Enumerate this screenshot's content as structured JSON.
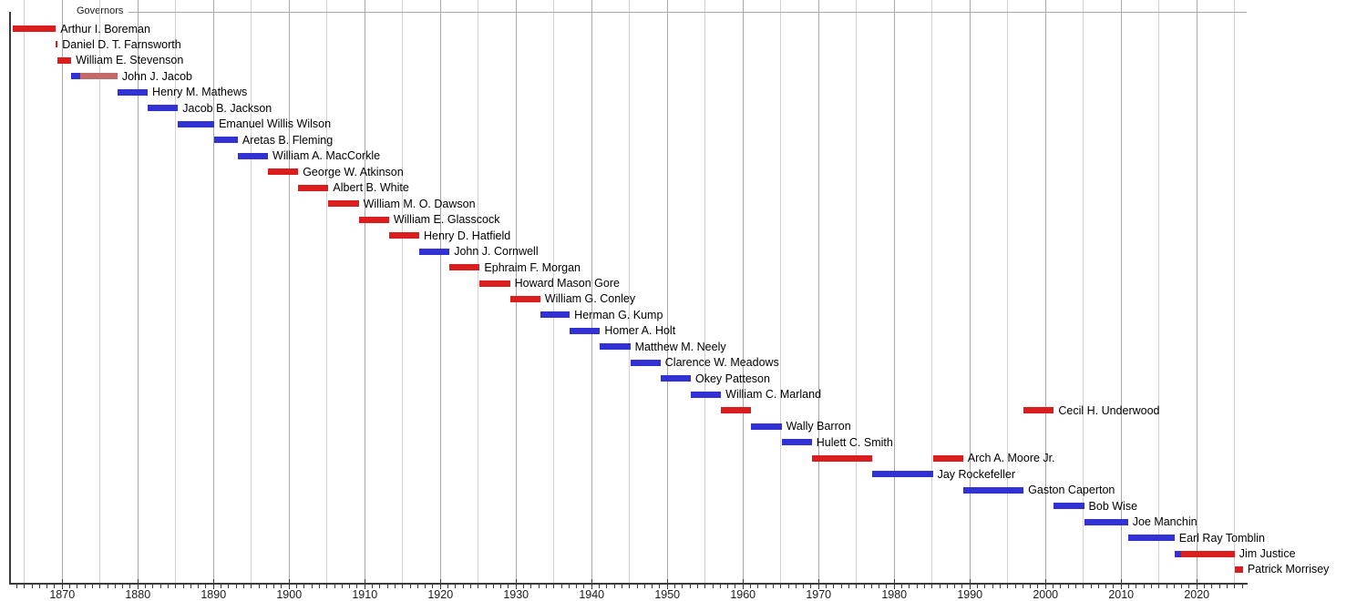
{
  "chart_data": {
    "type": "gantt",
    "title": "Governors",
    "subject": "Timeline of governors shown as colored term bars by party",
    "legend_position": "none",
    "grid": true,
    "x_axis": {
      "start": 1863.1,
      "end": 2026.6,
      "major_tick_interval": 10,
      "minor_tick_interval": 1,
      "gridline_interval": 5,
      "tick_labels": [
        "1870",
        "1880",
        "1890",
        "1900",
        "1910",
        "1920",
        "1930",
        "1940",
        "1950",
        "1960",
        "1970",
        "1980",
        "1990",
        "2000",
        "2010",
        "2020"
      ]
    },
    "party_colors": {
      "republican": "#dc1d1d",
      "democratic": "#3232d4",
      "independent": "#c46a6a"
    },
    "rows": [
      {
        "label": "Arthur I. Boreman",
        "terms": [
          {
            "start": 1863.5,
            "end": 1869.16,
            "party": "republican"
          }
        ]
      },
      {
        "label": "Daniel D. T. Farnsworth",
        "terms": [
          {
            "start": 1869.16,
            "end": 1869.4,
            "party": "republican"
          }
        ]
      },
      {
        "label": "William E. Stevenson",
        "terms": [
          {
            "start": 1869.4,
            "end": 1871.2,
            "party": "republican"
          }
        ]
      },
      {
        "label": "John J. Jacob",
        "terms": [
          {
            "start": 1871.2,
            "end": 1872.4,
            "party": "democratic"
          },
          {
            "start": 1872.4,
            "end": 1877.3,
            "party": "independent"
          }
        ]
      },
      {
        "label": "Henry M. Mathews",
        "terms": [
          {
            "start": 1877.3,
            "end": 1881.3,
            "party": "democratic"
          }
        ]
      },
      {
        "label": "Jacob B. Jackson",
        "terms": [
          {
            "start": 1881.3,
            "end": 1885.3,
            "party": "democratic"
          }
        ]
      },
      {
        "label": "Emanuel Willis Wilson",
        "terms": [
          {
            "start": 1885.3,
            "end": 1890.1,
            "party": "democratic"
          }
        ]
      },
      {
        "label": "Aretas B. Fleming",
        "terms": [
          {
            "start": 1890.1,
            "end": 1893.2,
            "party": "democratic"
          }
        ]
      },
      {
        "label": "William A. MacCorkle",
        "terms": [
          {
            "start": 1893.2,
            "end": 1897.2,
            "party": "democratic"
          }
        ]
      },
      {
        "label": "George W. Atkinson",
        "terms": [
          {
            "start": 1897.2,
            "end": 1901.2,
            "party": "republican"
          }
        ]
      },
      {
        "label": "Albert B. White",
        "terms": [
          {
            "start": 1901.2,
            "end": 1905.2,
            "party": "republican"
          }
        ]
      },
      {
        "label": "William M. O. Dawson",
        "terms": [
          {
            "start": 1905.2,
            "end": 1909.2,
            "party": "republican"
          }
        ]
      },
      {
        "label": "William E. Glasscock",
        "terms": [
          {
            "start": 1909.2,
            "end": 1913.2,
            "party": "republican"
          }
        ]
      },
      {
        "label": "Henry D. Hatfield",
        "terms": [
          {
            "start": 1913.2,
            "end": 1917.2,
            "party": "republican"
          }
        ]
      },
      {
        "label": "John J. Cornwell",
        "terms": [
          {
            "start": 1917.2,
            "end": 1921.2,
            "party": "democratic"
          }
        ]
      },
      {
        "label": "Ephraim F. Morgan",
        "terms": [
          {
            "start": 1921.2,
            "end": 1925.2,
            "party": "republican"
          }
        ]
      },
      {
        "label": "Howard Mason Gore",
        "terms": [
          {
            "start": 1925.2,
            "end": 1929.2,
            "party": "republican"
          }
        ]
      },
      {
        "label": "William G. Conley",
        "terms": [
          {
            "start": 1929.2,
            "end": 1933.2,
            "party": "republican"
          }
        ]
      },
      {
        "label": "Herman G. Kump",
        "terms": [
          {
            "start": 1933.2,
            "end": 1937.1,
            "party": "democratic"
          }
        ]
      },
      {
        "label": "Homer A. Holt",
        "terms": [
          {
            "start": 1937.1,
            "end": 1941.1,
            "party": "democratic"
          }
        ]
      },
      {
        "label": "Matthew M. Neely",
        "terms": [
          {
            "start": 1941.1,
            "end": 1945.1,
            "party": "democratic"
          }
        ]
      },
      {
        "label": "Clarence W. Meadows",
        "terms": [
          {
            "start": 1945.1,
            "end": 1949.1,
            "party": "democratic"
          }
        ]
      },
      {
        "label": "Okey Patteson",
        "terms": [
          {
            "start": 1949.1,
            "end": 1953.1,
            "party": "democratic"
          }
        ]
      },
      {
        "label": "William C. Marland",
        "terms": [
          {
            "start": 1953.1,
            "end": 1957.1,
            "party": "democratic"
          }
        ]
      },
      {
        "label": "Cecil H. Underwood",
        "terms": [
          {
            "start": 1957.1,
            "end": 1961.1,
            "party": "republican"
          },
          {
            "start": 1997.1,
            "end": 2001.1,
            "party": "republican"
          }
        ]
      },
      {
        "label": "Wally Barron",
        "terms": [
          {
            "start": 1961.1,
            "end": 1965.1,
            "party": "democratic"
          }
        ]
      },
      {
        "label": "Hulett C. Smith",
        "terms": [
          {
            "start": 1965.1,
            "end": 1969.1,
            "party": "democratic"
          }
        ]
      },
      {
        "label": "Arch A. Moore Jr.",
        "terms": [
          {
            "start": 1969.1,
            "end": 1977.1,
            "party": "republican"
          },
          {
            "start": 1985.1,
            "end": 1989.1,
            "party": "republican"
          }
        ]
      },
      {
        "label": "Jay Rockefeller",
        "terms": [
          {
            "start": 1977.1,
            "end": 1985.1,
            "party": "democratic"
          }
        ]
      },
      {
        "label": "Gaston Caperton",
        "terms": [
          {
            "start": 1989.1,
            "end": 1997.1,
            "party": "democratic"
          }
        ]
      },
      {
        "label": "Bob Wise",
        "terms": [
          {
            "start": 2001.1,
            "end": 2005.1,
            "party": "democratic"
          }
        ]
      },
      {
        "label": "Joe Manchin",
        "terms": [
          {
            "start": 2005.1,
            "end": 2010.9,
            "party": "democratic"
          }
        ]
      },
      {
        "label": "Earl Ray Tomblin",
        "terms": [
          {
            "start": 2010.9,
            "end": 2017.05,
            "party": "democratic"
          }
        ]
      },
      {
        "label": "Jim Justice",
        "terms": [
          {
            "start": 2017.05,
            "end": 2017.9,
            "party": "democratic"
          },
          {
            "start": 2017.9,
            "end": 2025.0,
            "party": "republican"
          }
        ]
      },
      {
        "label": "Patrick Morrisey",
        "terms": [
          {
            "start": 2025.0,
            "end": 2026.1,
            "party": "republican"
          }
        ]
      }
    ]
  },
  "colors": {
    "grid_major": "#a8a8a8",
    "grid_minor": "#d2d2d2",
    "axis": "#3a3a3a",
    "text": "#000000"
  }
}
